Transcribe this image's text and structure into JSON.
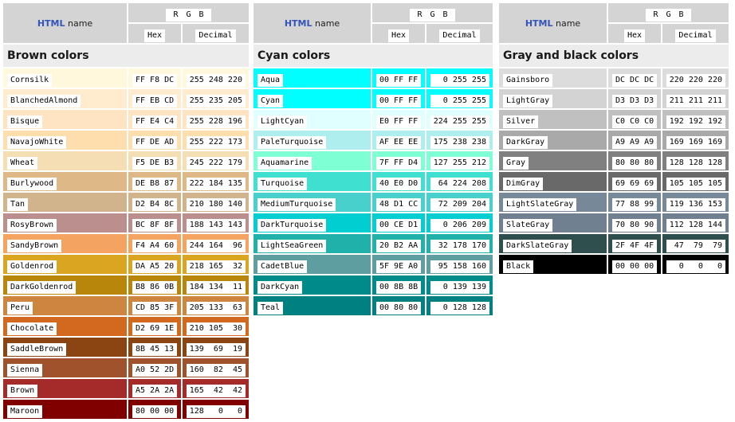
{
  "headers": {
    "html_label": "HTML",
    "name_label": "name",
    "rgb_r": "R",
    "rgb_g": "G",
    "rgb_b": "B",
    "hex_label": "Hex",
    "decimal_label": "Decimal"
  },
  "groups": [
    {
      "title": "Brown colors",
      "colors": [
        {
          "name": "Cornsilk",
          "hex": "FF F8 DC",
          "dec": "255 248 220",
          "bg": "#FFF8DC"
        },
        {
          "name": "BlanchedAlmond",
          "hex": "FF EB CD",
          "dec": "255 235 205",
          "bg": "#FFEBCD"
        },
        {
          "name": "Bisque",
          "hex": "FF E4 C4",
          "dec": "255 228 196",
          "bg": "#FFE4C4"
        },
        {
          "name": "NavajoWhite",
          "hex": "FF DE AD",
          "dec": "255 222 173",
          "bg": "#FFDEAD"
        },
        {
          "name": "Wheat",
          "hex": "F5 DE B3",
          "dec": "245 222 179",
          "bg": "#F5DEB3"
        },
        {
          "name": "Burlywood",
          "hex": "DE B8 87",
          "dec": "222 184 135",
          "bg": "#DEB887"
        },
        {
          "name": "Tan",
          "hex": "D2 B4 8C",
          "dec": "210 180 140",
          "bg": "#D2B48C"
        },
        {
          "name": "RosyBrown",
          "hex": "BC 8F 8F",
          "dec": "188 143 143",
          "bg": "#BC8F8F"
        },
        {
          "name": "SandyBrown",
          "hex": "F4 A4 60",
          "dec": "244 164  96",
          "bg": "#F4A460"
        },
        {
          "name": "Goldenrod",
          "hex": "DA A5 20",
          "dec": "218 165  32",
          "bg": "#DAA520"
        },
        {
          "name": "DarkGoldenrod",
          "hex": "B8 86 0B",
          "dec": "184 134  11",
          "bg": "#B8860B"
        },
        {
          "name": "Peru",
          "hex": "CD 85 3F",
          "dec": "205 133  63",
          "bg": "#CD853F"
        },
        {
          "name": "Chocolate",
          "hex": "D2 69 1E",
          "dec": "210 105  30",
          "bg": "#D2691E"
        },
        {
          "name": "SaddleBrown",
          "hex": "8B 45 13",
          "dec": "139  69  19",
          "bg": "#8B4513"
        },
        {
          "name": "Sienna",
          "hex": "A0 52 2D",
          "dec": "160  82  45",
          "bg": "#A0522D"
        },
        {
          "name": "Brown",
          "hex": "A5 2A 2A",
          "dec": "165  42  42",
          "bg": "#A52A2A"
        },
        {
          "name": "Maroon",
          "hex": "80 00 00",
          "dec": "128   0   0",
          "bg": "#800000"
        }
      ]
    },
    {
      "title": "Cyan colors",
      "colors": [
        {
          "name": "Aqua",
          "hex": "00 FF FF",
          "dec": "  0 255 255",
          "bg": "#00FFFF"
        },
        {
          "name": "Cyan",
          "hex": "00 FF FF",
          "dec": "  0 255 255",
          "bg": "#00FFFF"
        },
        {
          "name": "LightCyan",
          "hex": "E0 FF FF",
          "dec": "224 255 255",
          "bg": "#E0FFFF"
        },
        {
          "name": "PaleTurquoise",
          "hex": "AF EE EE",
          "dec": "175 238 238",
          "bg": "#AFEEEE"
        },
        {
          "name": "Aquamarine",
          "hex": "7F FF D4",
          "dec": "127 255 212",
          "bg": "#7FFFD4"
        },
        {
          "name": "Turquoise",
          "hex": "40 E0 D0",
          "dec": " 64 224 208",
          "bg": "#40E0D0"
        },
        {
          "name": "MediumTurquoise",
          "hex": "48 D1 CC",
          "dec": " 72 209 204",
          "bg": "#48D1CC"
        },
        {
          "name": "DarkTurquoise",
          "hex": "00 CE D1",
          "dec": "  0 206 209",
          "bg": "#00CED1"
        },
        {
          "name": "LightSeaGreen",
          "hex": "20 B2 AA",
          "dec": " 32 178 170",
          "bg": "#20B2AA"
        },
        {
          "name": "CadetBlue",
          "hex": "5F 9E A0",
          "dec": " 95 158 160",
          "bg": "#5F9EA0"
        },
        {
          "name": "DarkCyan",
          "hex": "00 8B 8B",
          "dec": "  0 139 139",
          "bg": "#008B8B"
        },
        {
          "name": "Teal",
          "hex": "00 80 80",
          "dec": "  0 128 128",
          "bg": "#008080"
        }
      ]
    },
    {
      "title": "Gray and black colors",
      "colors": [
        {
          "name": "Gainsboro",
          "hex": "DC DC DC",
          "dec": "220 220 220",
          "bg": "#DCDCDC"
        },
        {
          "name": "LightGray",
          "hex": "D3 D3 D3",
          "dec": "211 211 211",
          "bg": "#D3D3D3"
        },
        {
          "name": "Silver",
          "hex": "C0 C0 C0",
          "dec": "192 192 192",
          "bg": "#C0C0C0"
        },
        {
          "name": "DarkGray",
          "hex": "A9 A9 A9",
          "dec": "169 169 169",
          "bg": "#A9A9A9"
        },
        {
          "name": "Gray",
          "hex": "80 80 80",
          "dec": "128 128 128",
          "bg": "#808080"
        },
        {
          "name": "DimGray",
          "hex": "69 69 69",
          "dec": "105 105 105",
          "bg": "#696969"
        },
        {
          "name": "LightSlateGray",
          "hex": "77 88 99",
          "dec": "119 136 153",
          "bg": "#778899"
        },
        {
          "name": "SlateGray",
          "hex": "70 80 90",
          "dec": "112 128 144",
          "bg": "#708090"
        },
        {
          "name": "DarkSlateGray",
          "hex": "2F 4F 4F",
          "dec": " 47  79  79",
          "bg": "#2F4F4F"
        },
        {
          "name": "Black",
          "hex": "00 00 00",
          "dec": "  0   0   0",
          "bg": "#000000"
        }
      ]
    }
  ]
}
